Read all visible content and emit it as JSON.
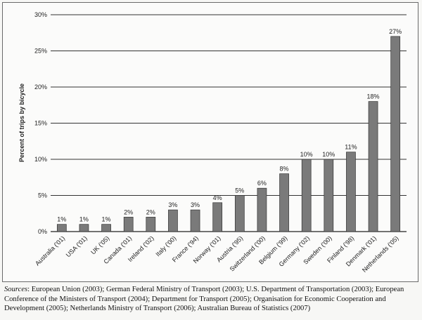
{
  "chart_data": {
    "type": "bar",
    "title": "",
    "xlabel": "",
    "ylabel": "Percent of trips by bicycle",
    "ylim": [
      0,
      30
    ],
    "yticks": [
      "0%",
      "5%",
      "10%",
      "15%",
      "20%",
      "25%",
      "30%"
    ],
    "ytick_values": [
      0,
      5,
      10,
      15,
      20,
      25,
      30
    ],
    "grid": true,
    "bar_color": "#7a7a7a",
    "categories": [
      "Australia ('01)",
      "USA ('01)",
      "UK ('05)",
      "Canada ('01)",
      "Ireland ('02)",
      "Italy ('00)",
      "France ('94)",
      "Norway ('01)",
      "Austria ('95)",
      "Switzerland ('00)",
      "Belgium ('99)",
      "Germany ('02)",
      "Sweden ('00)",
      "Finland ('98)",
      "Denmark ('01)",
      "Netherlands ('05)"
    ],
    "values": [
      1,
      1,
      1,
      2,
      2,
      3,
      3,
      4,
      5,
      6,
      8,
      10,
      10,
      11,
      18,
      27
    ],
    "data_labels": [
      "1%",
      "1%",
      "1%",
      "2%",
      "2%",
      "3%",
      "3%",
      "4%",
      "5%",
      "6%",
      "8%",
      "10%",
      "10%",
      "11%",
      "18%",
      "27%"
    ]
  },
  "sources": {
    "label": "Sources",
    "text": ": European Union (2003); German Federal Ministry of Transport (2003); U.S. Department of Transportation (2003); European Conference of the Ministers of Transport (2004); Department for Transport (2005); Organisation for Economic Cooperation and Development (2005); Netherlands Ministry of Transport (2006); Australian Bureau of Statistics (2007)"
  }
}
